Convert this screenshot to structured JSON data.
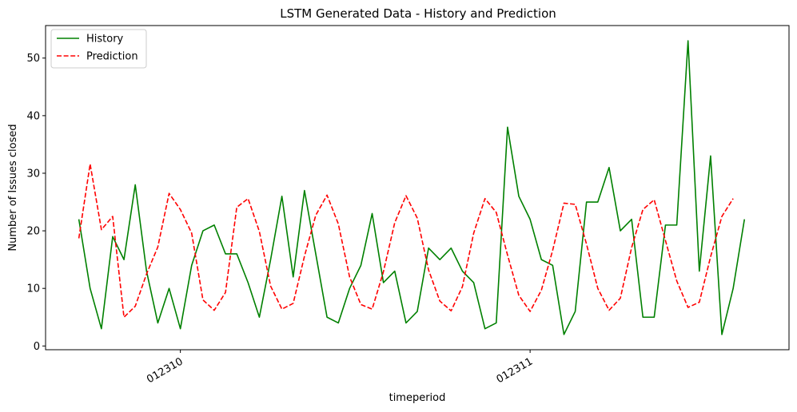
{
  "chart_data": {
    "type": "line",
    "title": "LSTM Generated Data - History and Prediction",
    "xlabel": "timeperiod",
    "ylabel": "Number of Issues closed",
    "x_tick_labels": [
      "012310",
      "012311"
    ],
    "x_tick_indices": [
      9,
      40
    ],
    "y_ticks": [
      0,
      10,
      20,
      30,
      40,
      50
    ],
    "ylim": [
      -0.65,
      55.65
    ],
    "x_index_range": [
      -2.95,
      62.95
    ],
    "grid": false,
    "legend_position": "top-left",
    "series": [
      {
        "name": "History",
        "color": "#008000",
        "dash": "solid",
        "values": [
          22,
          10,
          3,
          19,
          15,
          28,
          13,
          4,
          10,
          3,
          14,
          20,
          21,
          16,
          16,
          11,
          5,
          15,
          26,
          12,
          27,
          16,
          5,
          4,
          10,
          14,
          23,
          11,
          13,
          4,
          6,
          17,
          15,
          17,
          13,
          11,
          3,
          4,
          38,
          26,
          22,
          15,
          14,
          2,
          6,
          25,
          25,
          31,
          20,
          22,
          5,
          5,
          21,
          21,
          53,
          13,
          33,
          2,
          10,
          22
        ]
      },
      {
        "name": "Prediction",
        "color": "#ff0000",
        "dash": "dashed",
        "values": [
          18.7,
          31.6,
          20.2,
          22.5,
          5.0,
          6.9,
          12.5,
          17.2,
          26.5,
          23.7,
          19.6,
          8.0,
          6.2,
          9.3,
          24.1,
          25.6,
          19.9,
          10.4,
          6.4,
          7.4,
          15.6,
          22.7,
          26.2,
          21.2,
          12.0,
          7.2,
          6.4,
          12.9,
          21.4,
          26.1,
          22.2,
          13.2,
          7.8,
          6.1,
          10.3,
          19.6,
          25.6,
          23.2,
          15.8,
          8.8,
          6.0,
          9.7,
          16.6,
          24.8,
          24.6,
          17.7,
          10.0,
          6.2,
          8.3,
          17.1,
          23.7,
          25.4,
          18.3,
          11.3,
          6.7,
          7.6,
          15.5,
          22.5,
          25.6
        ]
      }
    ]
  }
}
